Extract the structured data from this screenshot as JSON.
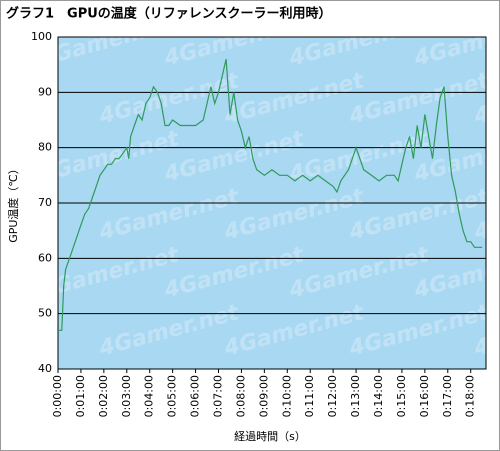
{
  "chart_data": {
    "type": "line",
    "title": "グラフ1　GPUの温度（リファレンスクーラー利用時）",
    "x_label": "経過時間（s）",
    "y_label": "GPU温度（℃）",
    "watermark": "4Gamer.net",
    "xlim": [
      0,
      1120
    ],
    "ylim": [
      40,
      100
    ],
    "yticks": [
      40,
      50,
      60,
      70,
      80,
      90,
      100
    ],
    "xticks": [
      {
        "value": 0,
        "label": "0:00:00"
      },
      {
        "value": 60,
        "label": "0:01:00"
      },
      {
        "value": 120,
        "label": "0:02:00"
      },
      {
        "value": 180,
        "label": "0:03:00"
      },
      {
        "value": 240,
        "label": "0:04:00"
      },
      {
        "value": 300,
        "label": "0:05:00"
      },
      {
        "value": 360,
        "label": "0:06:00"
      },
      {
        "value": 420,
        "label": "0:07:00"
      },
      {
        "value": 480,
        "label": "0:08:00"
      },
      {
        "value": 540,
        "label": "0:09:00"
      },
      {
        "value": 600,
        "label": "0:10:00"
      },
      {
        "value": 660,
        "label": "0:11:00"
      },
      {
        "value": 720,
        "label": "0:12:00"
      },
      {
        "value": 780,
        "label": "0:13:00"
      },
      {
        "value": 840,
        "label": "0:14:00"
      },
      {
        "value": 900,
        "label": "0:15:00"
      },
      {
        "value": 960,
        "label": "0:16:00"
      },
      {
        "value": 1020,
        "label": "0:17:00"
      },
      {
        "value": 1080,
        "label": "0:18:00"
      }
    ],
    "grid": true,
    "series": [
      {
        "name": "GPU",
        "color": "#2f9a5c",
        "x": [
          0,
          10,
          15,
          20,
          30,
          40,
          50,
          60,
          70,
          80,
          90,
          100,
          110,
          120,
          130,
          140,
          150,
          160,
          170,
          180,
          185,
          190,
          200,
          210,
          220,
          230,
          240,
          250,
          260,
          270,
          280,
          290,
          300,
          320,
          340,
          360,
          380,
          400,
          410,
          420,
          430,
          440,
          450,
          460,
          470,
          480,
          490,
          500,
          510,
          520,
          540,
          560,
          580,
          600,
          620,
          640,
          660,
          680,
          700,
          720,
          730,
          740,
          760,
          770,
          780,
          790,
          800,
          820,
          840,
          860,
          880,
          890,
          900,
          910,
          920,
          930,
          940,
          950,
          960,
          970,
          980,
          990,
          1000,
          1010,
          1020,
          1030,
          1040,
          1050,
          1060,
          1070,
          1080,
          1090,
          1100,
          1110
        ],
        "values": [
          47,
          47,
          55,
          58,
          60,
          62,
          64,
          66,
          68,
          69,
          71,
          73,
          75,
          76,
          77,
          77,
          78,
          78,
          79,
          80,
          78,
          82,
          84,
          86,
          85,
          88,
          89,
          91,
          90,
          88,
          84,
          84,
          85,
          84,
          84,
          84,
          85,
          91,
          88,
          90,
          93,
          96,
          86,
          90,
          85,
          83,
          80,
          82,
          78,
          76,
          75,
          76,
          75,
          75,
          74,
          75,
          74,
          75,
          74,
          73,
          72,
          74,
          76,
          78,
          80,
          78,
          76,
          75,
          74,
          75,
          75,
          74,
          77,
          80,
          82,
          78,
          84,
          80,
          86,
          82,
          78,
          84,
          89,
          91,
          82,
          75,
          72,
          68,
          65,
          63,
          63,
          62,
          62,
          62
        ]
      }
    ]
  }
}
